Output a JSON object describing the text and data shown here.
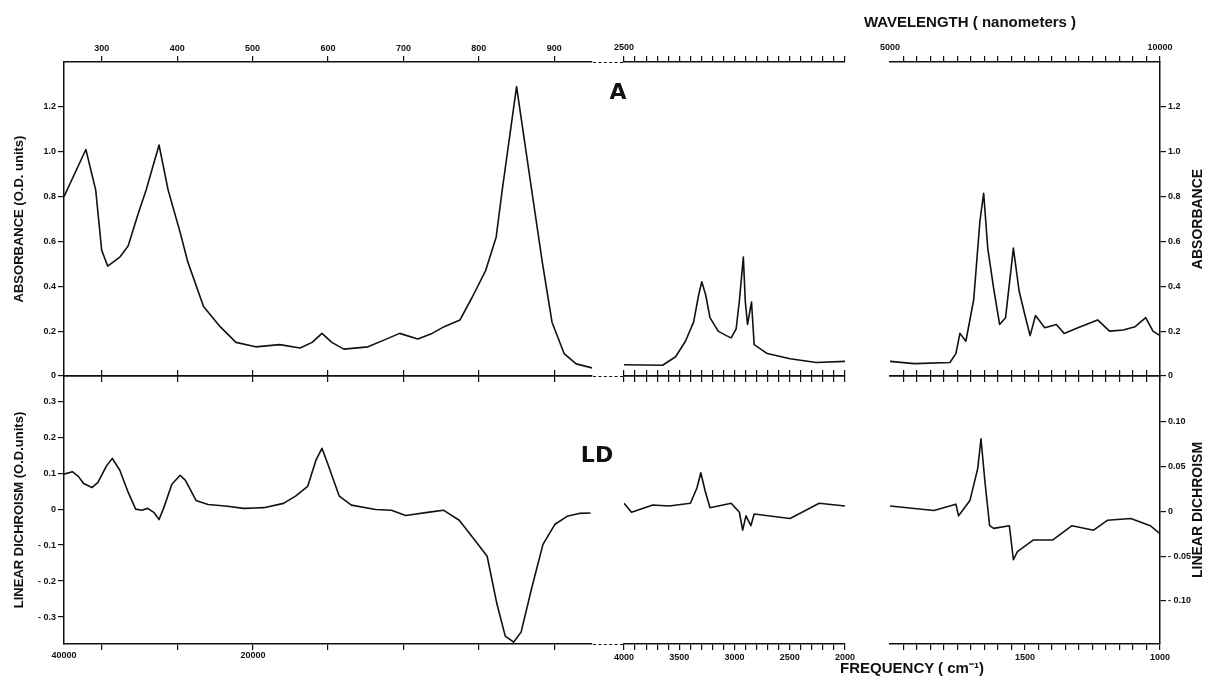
{
  "chart_data": [
    {
      "type": "line",
      "ylabel": "ABSORBANCE (O.D. units)",
      "x": [
        250,
        279,
        292,
        300,
        308,
        324,
        335,
        348,
        359,
        376,
        388,
        404,
        414,
        435,
        457,
        478,
        504,
        536,
        563,
        579,
        592,
        605,
        621,
        653,
        674,
        695,
        719,
        738,
        754,
        775,
        791,
        809,
        823,
        831,
        850,
        870,
        884,
        897,
        913,
        929,
        950
      ],
      "series": [
        {
          "color": "#111111",
          "values": [
            0.8,
            1.01,
            0.83,
            0.56,
            0.49,
            0.53,
            0.58,
            0.72,
            0.83,
            1.03,
            0.83,
            0.64,
            0.51,
            0.31,
            0.22,
            0.15,
            0.13,
            0.14,
            0.125,
            0.15,
            0.19,
            0.15,
            0.12,
            0.13,
            0.16,
            0.19,
            0.165,
            0.19,
            0.22,
            0.25,
            0.35,
            0.47,
            0.62,
            0.83,
            1.29,
            0.83,
            0.51,
            0.24,
            0.1,
            0.054,
            0.036
          ]
        }
      ],
      "xlim": [
        250,
        950
      ],
      "xticks": [
        300,
        400,
        500,
        600,
        700,
        800,
        900
      ],
      "ylim": [
        0,
        1.4
      ],
      "yticks": [
        0,
        0.2,
        0.4,
        0.6,
        0.8,
        {
          "value": 1,
          "label": "1.0"
        },
        1.2
      ]
    },
    {
      "type": "line",
      "annotations": [
        "A",
        "2500",
        "5000"
      ],
      "x": [
        4000,
        3651,
        3533,
        3444,
        3370,
        3325,
        3296,
        3260,
        3222,
        3148,
        3074,
        3030,
        2985,
        2956,
        2920,
        2902,
        2882,
        2846,
        2822,
        2704,
        2497,
        2260,
        2000
      ],
      "series": [
        {
          "color": "#111111",
          "axis": "y2",
          "values": [
            0.05,
            0.048,
            0.086,
            0.155,
            0.24,
            0.36,
            0.42,
            0.36,
            0.26,
            0.2,
            0.18,
            0.17,
            0.21,
            0.335,
            0.53,
            0.33,
            0.23,
            0.33,
            0.14,
            0.1,
            0.077,
            0.06,
            0.065
          ]
        }
      ],
      "xlim": [
        4000,
        2000
      ],
      "xticks": [
        {
          "value": 4000,
          "label": null
        },
        {
          "value": 3900,
          "label": null
        },
        {
          "value": 3800,
          "label": null
        },
        {
          "value": 3700,
          "label": null
        },
        {
          "value": 3600,
          "label": null
        },
        {
          "value": 3500,
          "label": null
        },
        {
          "value": 3400,
          "label": null
        },
        {
          "value": 3300,
          "label": null
        },
        {
          "value": 3200,
          "label": null
        },
        {
          "value": 3100,
          "label": null
        },
        {
          "value": 3000,
          "label": null
        },
        {
          "value": 2900,
          "label": null
        },
        {
          "value": 2800,
          "label": null
        },
        {
          "value": 2700,
          "label": null
        },
        {
          "value": 2600,
          "label": null
        },
        {
          "value": 2500,
          "label": null
        },
        {
          "value": 2400,
          "label": null
        },
        {
          "value": 2300,
          "label": null
        },
        {
          "value": 2200,
          "label": null
        },
        {
          "value": 2100,
          "label": null
        },
        {
          "value": 2000,
          "label": null
        }
      ],
      "y2lim": [
        0,
        1.4
      ],
      "tick_labels": false
    },
    {
      "type": "line",
      "title": "WAVELENGTH ( nanometers )",
      "annotations": [
        "10000"
      ],
      "y2label": "ABSORBANCE",
      "x": [
        2000,
        1910,
        1778,
        1756,
        1741,
        1719,
        1690,
        1667,
        1653,
        1638,
        1616,
        1594,
        1572,
        1543,
        1522,
        1500,
        1481,
        1461,
        1427,
        1384,
        1355,
        1304,
        1231,
        1187,
        1136,
        1092,
        1053,
        1026,
        1000
      ],
      "series": [
        {
          "color": "#111111",
          "axis": "y2",
          "values": [
            0.065,
            0.055,
            0.06,
            0.1,
            0.19,
            0.155,
            0.34,
            0.69,
            0.815,
            0.57,
            0.39,
            0.23,
            0.26,
            0.57,
            0.38,
            0.27,
            0.18,
            0.27,
            0.215,
            0.23,
            0.19,
            0.215,
            0.25,
            0.2,
            0.205,
            0.22,
            0.26,
            0.2,
            0.18
          ]
        }
      ],
      "xlim": [
        2000,
        1000
      ],
      "xticks": [
        {
          "value": 1950,
          "label": null
        },
        {
          "value": 1900,
          "label": null
        },
        {
          "value": 1850,
          "label": null
        },
        {
          "value": 1800,
          "label": null
        },
        {
          "value": 1750,
          "label": null
        },
        {
          "value": 1700,
          "label": null
        },
        {
          "value": 1650,
          "label": null
        },
        {
          "value": 1600,
          "label": null
        },
        {
          "value": 1550,
          "label": null
        },
        {
          "value": 1500,
          "label": null
        },
        {
          "value": 1450,
          "label": null
        },
        {
          "value": 1400,
          "label": null
        },
        {
          "value": 1350,
          "label": null
        },
        {
          "value": 1300,
          "label": null
        },
        {
          "value": 1250,
          "label": null
        },
        {
          "value": 1200,
          "label": null
        },
        {
          "value": 1150,
          "label": null
        },
        {
          "value": 1100,
          "label": null
        },
        {
          "value": 1050,
          "label": null
        },
        {
          "value": 1000,
          "label": null
        }
      ],
      "y2lim": [
        0,
        1.4
      ],
      "y2ticks": [
        0,
        0.2,
        0.4,
        0.6,
        0.8,
        {
          "value": 1,
          "label": "1.0"
        },
        1.2
      ],
      "tick_labels": "y"
    },
    {
      "type": "line",
      "annotations": [
        "40000",
        "20000"
      ],
      "ylabel": "LINEAR DICHROISM (O.D.units)",
      "x": [
        250,
        261,
        269,
        276,
        287,
        295,
        306,
        314,
        324,
        335,
        345,
        353,
        361,
        369,
        376,
        382,
        393,
        404,
        411,
        425,
        441,
        467,
        488,
        515,
        541,
        557,
        573,
        584,
        592,
        600,
        615,
        631,
        663,
        684,
        703,
        732,
        753,
        774,
        795,
        811,
        824,
        835,
        846,
        856,
        870,
        885,
        901,
        917,
        933,
        948
      ],
      "series": [
        {
          "color": "#111111",
          "values": [
            0.097,
            0.104,
            0.091,
            0.071,
            0.06,
            0.074,
            0.119,
            0.141,
            0.108,
            0.047,
            0,
            -0.003,
            0.002,
            -0.009,
            -0.029,
            0.002,
            0.069,
            0.094,
            0.08,
            0.024,
            0.013,
            0.008,
            0.002,
            0.004,
            0.016,
            0.036,
            0.063,
            0.136,
            0.169,
            0.124,
            0.036,
            0.011,
            -0.001,
            -0.003,
            -0.018,
            -0.009,
            -0.003,
            -0.031,
            -0.087,
            -0.131,
            -0.264,
            -0.353,
            -0.37,
            -0.342,
            -0.22,
            -0.098,
            -0.042,
            -0.02,
            -0.012,
            -0.011
          ]
        }
      ],
      "xlim": [
        250,
        950
      ],
      "xticks": [
        {
          "value": 300,
          "label": null
        },
        {
          "value": 400,
          "label": null
        },
        {
          "value": 500,
          "label": null
        },
        {
          "value": 600,
          "label": null
        },
        {
          "value": 700,
          "label": null
        },
        {
          "value": 800,
          "label": null
        },
        {
          "value": 900,
          "label": null
        }
      ],
      "ylim": [
        -0.375,
        0.37
      ],
      "yticks": [
        {
          "value": -0.3,
          "label": "- 0.3"
        },
        {
          "value": -0.2,
          "label": "- 0.2"
        },
        {
          "value": -0.1,
          "label": "- 0.1"
        },
        0,
        0.1,
        0.2,
        0.3
      ],
      "tick_labels": "y"
    },
    {
      "type": "line",
      "annotations": [
        "LD"
      ],
      "x": [
        4000,
        3932,
        3740,
        3592,
        3399,
        3340,
        3305,
        3266,
        3222,
        3030,
        2956,
        2926,
        2896,
        2852,
        2822,
        2497,
        2234,
        2000
      ],
      "series": [
        {
          "color": "#111111",
          "axis": "y2",
          "values": [
            0.009,
            -0.001,
            0.007,
            0.006,
            0.009,
            0.026,
            0.043,
            0.023,
            0.004,
            0.009,
            -0.001,
            -0.021,
            -0.005,
            -0.016,
            -0.003,
            -0.008,
            0.009,
            0.006
          ]
        }
      ],
      "xlim": [
        4000,
        2000
      ],
      "xticks": [
        4000,
        {
          "value": 3900,
          "label": null
        },
        {
          "value": 3800,
          "label": null
        },
        {
          "value": 3700,
          "label": null
        },
        {
          "value": 3600,
          "label": null
        },
        3500,
        {
          "value": 3400,
          "label": null
        },
        {
          "value": 3300,
          "label": null
        },
        {
          "value": 3200,
          "label": null
        },
        {
          "value": 3100,
          "label": null
        },
        3000,
        {
          "value": 2900,
          "label": null
        },
        {
          "value": 2800,
          "label": null
        },
        {
          "value": 2700,
          "label": null
        },
        {
          "value": 2600,
          "label": null
        },
        2500,
        {
          "value": 2400,
          "label": null
        },
        {
          "value": 2300,
          "label": null
        },
        {
          "value": 2200,
          "label": null
        },
        {
          "value": 2100,
          "label": null
        },
        2000
      ],
      "y2lim": [
        -0.148,
        0.151
      ],
      "tick_labels": "x"
    },
    {
      "type": "line",
      "xlabel": "FREQUENCY ( cm⁻¹)",
      "y2label": "LINEAR DICHROISM",
      "x": [
        2000,
        1837,
        1756,
        1746,
        1704,
        1675,
        1663,
        1649,
        1631,
        1616,
        1558,
        1543,
        1528,
        1470,
        1398,
        1326,
        1246,
        1195,
        1108,
        1036,
        1000
      ],
      "series": [
        {
          "color": "#111111",
          "axis": "y2",
          "values": [
            0.006,
            0.001,
            0.008,
            -0.005,
            0.012,
            0.048,
            0.081,
            0.035,
            -0.016,
            -0.019,
            -0.016,
            -0.054,
            -0.045,
            -0.032,
            -0.032,
            -0.016,
            -0.021,
            -0.01,
            -0.008,
            -0.016,
            -0.025
          ]
        }
      ],
      "xlim": [
        2000,
        1000
      ],
      "xticks": [
        {
          "value": 1950,
          "label": null
        },
        {
          "value": 1900,
          "label": null
        },
        {
          "value": 1850,
          "label": null
        },
        {
          "value": 1800,
          "label": null
        },
        {
          "value": 1750,
          "label": null
        },
        {
          "value": 1700,
          "label": null
        },
        {
          "value": 1650,
          "label": null
        },
        {
          "value": 1600,
          "label": null
        },
        {
          "value": 1550,
          "label": null
        },
        1500,
        {
          "value": 1450,
          "label": null
        },
        {
          "value": 1400,
          "label": null
        },
        {
          "value": 1350,
          "label": null
        },
        {
          "value": 1300,
          "label": null
        },
        {
          "value": 1250,
          "label": null
        },
        {
          "value": 1200,
          "label": null
        },
        {
          "value": 1150,
          "label": null
        },
        {
          "value": 1100,
          "label": null
        },
        {
          "value": 1050,
          "label": null
        },
        1000
      ],
      "y2lim": [
        -0.148,
        0.151
      ],
      "y2ticks": [
        {
          "value": 0.1,
          "label": "0.10"
        },
        0.05,
        0,
        {
          "value": -0.05,
          "label": "- 0.05"
        },
        {
          "value": -0.1,
          "label": "- 0.10"
        }
      ]
    }
  ]
}
